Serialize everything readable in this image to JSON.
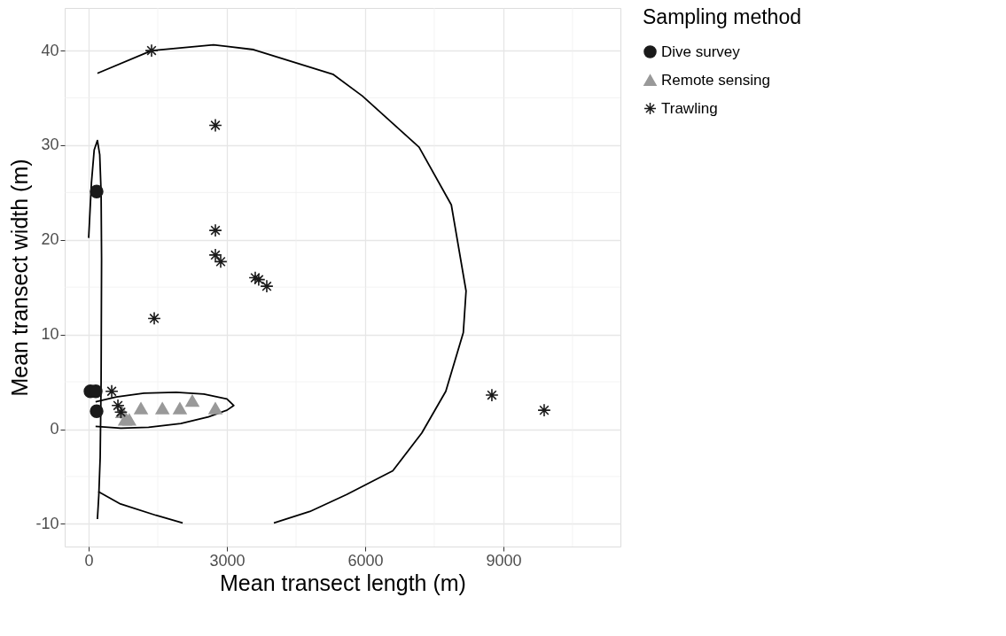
{
  "chart_data": {
    "type": "scatter",
    "xlabel": "Mean transect length (m)",
    "ylabel": "Mean transect width (m)",
    "legend_title": "Sampling method",
    "legend": "right",
    "grid": true,
    "xlim": [
      -520,
      11540
    ],
    "ylim": [
      -12.4,
      44.5
    ],
    "xticks": [
      0,
      {
        "value": 1500,
        "label": null
      },
      3000,
      {
        "value": 4500,
        "label": null
      },
      6000,
      {
        "value": 7500,
        "label": null
      },
      9000,
      {
        "value": 10500,
        "label": null
      }
    ],
    "yticks": [
      -10,
      {
        "value": -5,
        "label": null
      },
      0,
      {
        "value": 5,
        "label": null
      },
      10,
      {
        "value": 15,
        "label": null
      },
      20,
      {
        "value": 25,
        "label": null
      },
      30,
      {
        "value": 35,
        "label": null
      },
      40
    ],
    "series": [
      {
        "name": "Dive survey",
        "marker": "circle",
        "color": "#1a1a1a",
        "x": [
          38,
          154,
          173,
          173
        ],
        "values": [
          4.0,
          4.0,
          1.9,
          25.1
        ]
      },
      {
        "name": "Remote sensing",
        "marker": "triangle",
        "color": "#999999",
        "x": [
          730,
          790,
          880,
          1135,
          1600,
          1980,
          2250,
          2750
        ],
        "values": [
          1.8,
          1.0,
          1.0,
          2.2,
          2.2,
          2.2,
          3.0,
          2.2
        ]
      },
      {
        "name": "Trawling",
        "marker": "cross",
        "color": "#1a1a1a",
        "x": [
          1365,
          2750,
          2750,
          2750,
          2865,
          3615,
          3690,
          3865,
          1423,
          500,
          635,
          700,
          8750,
          9885
        ],
        "values": [
          40.0,
          32.1,
          21.0,
          18.4,
          17.7,
          16.0,
          15.8,
          15.1,
          11.7,
          4.0,
          2.5,
          1.8,
          3.6,
          2.0
        ]
      },
      {
        "type": "line",
        "line_style": "solid",
        "color": "#000000",
        "x": [
          0,
          60,
          120,
          190,
          240,
          270,
          280,
          270,
          250,
          220,
          190
        ],
        "values": [
          20.2,
          26,
          29.5,
          30.5,
          29,
          25,
          18,
          5,
          -3,
          -7,
          -9.5
        ]
      },
      {
        "type": "line",
        "line_style": "solid",
        "color": "#000000",
        "x": [
          150,
          700,
          1300,
          2000,
          2600,
          3000,
          3150,
          3000,
          2500,
          1900,
          1200,
          600,
          150
        ],
        "values": [
          0.3,
          0.1,
          0.2,
          0.6,
          1.3,
          2.0,
          2.5,
          3.2,
          3.7,
          3.9,
          3.8,
          3.4,
          2.9
        ]
      },
      {
        "type": "line",
        "line_style": "solid",
        "color": "#000000",
        "x": [
          190,
          1365,
          2710,
          3580,
          5300,
          5940,
          7170,
          7870,
          8190,
          8130,
          7750,
          7230,
          6600,
          5600,
          4800,
          4020
        ],
        "values": [
          37.6,
          40.0,
          40.6,
          40.1,
          37.5,
          35.2,
          29.8,
          23.7,
          14.6,
          10.2,
          4.0,
          -0.4,
          -4.4,
          -6.9,
          -8.7,
          -9.9
        ]
      },
      {
        "type": "line",
        "line_style": "solid",
        "color": "#000000",
        "x": [
          210,
          690,
          1460,
          2040
        ],
        "values": [
          -6.6,
          -7.9,
          -9.1,
          -9.9
        ]
      }
    ]
  }
}
